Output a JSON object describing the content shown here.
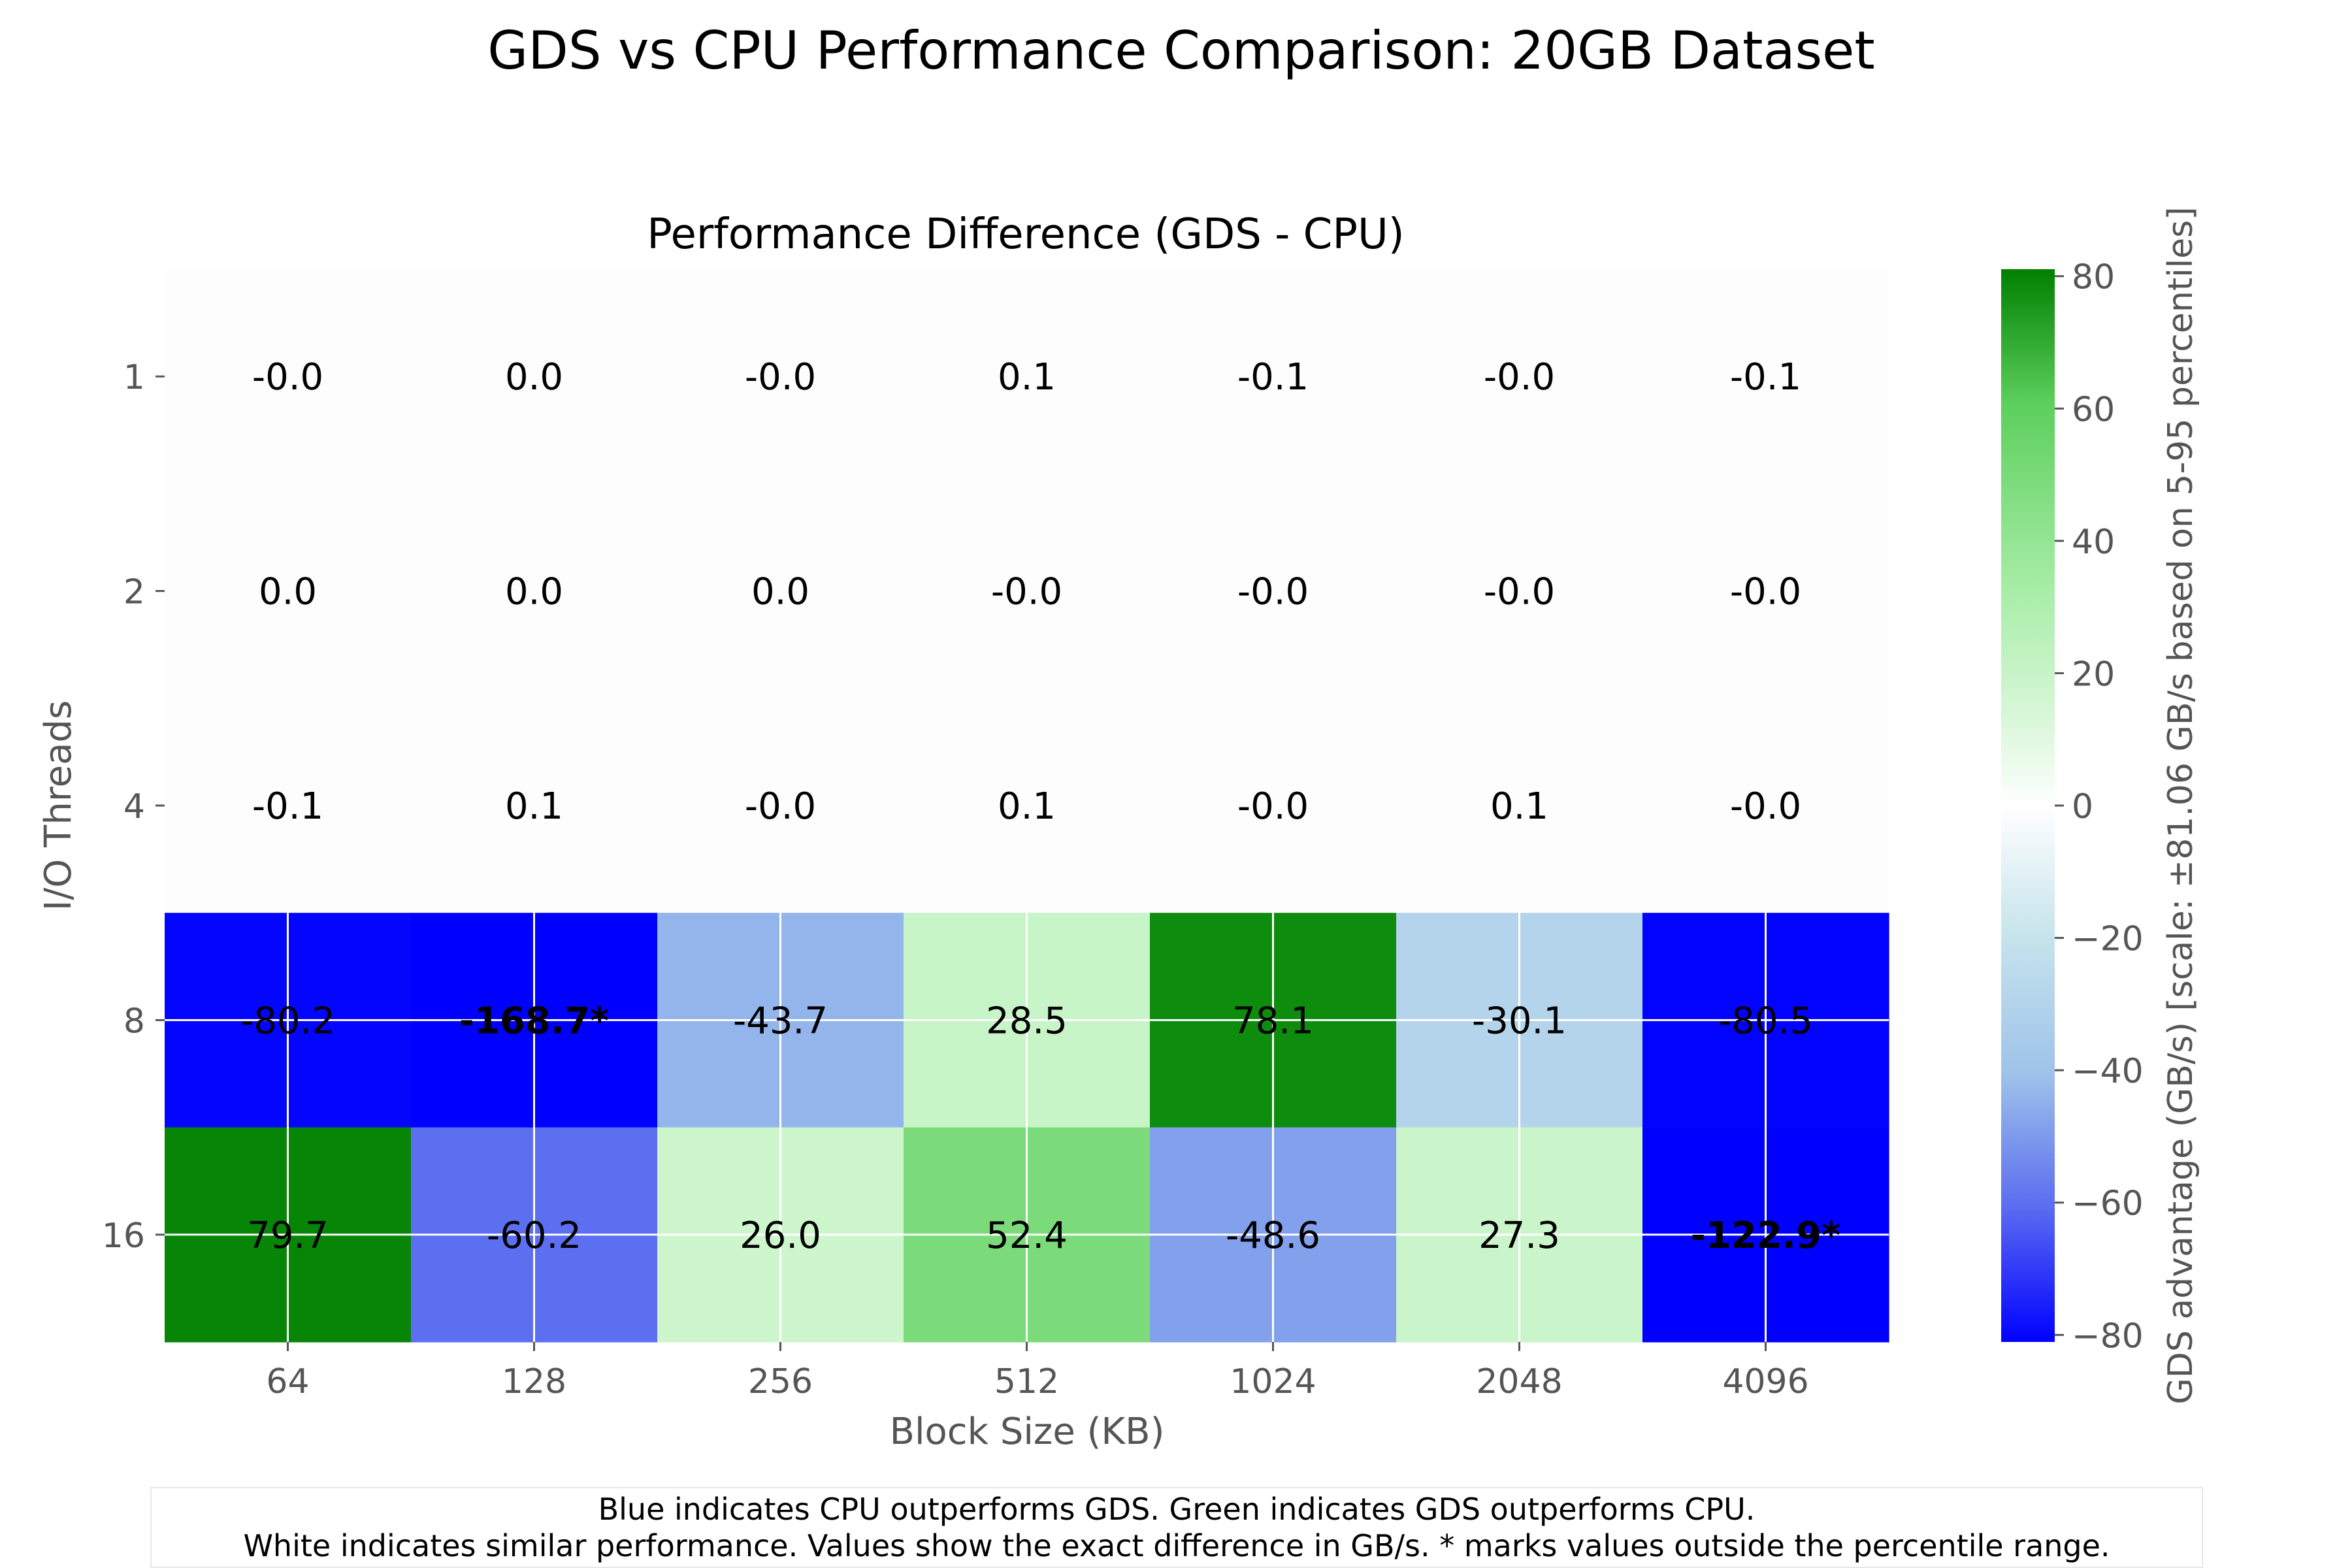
{
  "chart_data": {
    "type": "heatmap",
    "title": "GDS vs CPU Performance Comparison: 20GB Dataset",
    "subtitle": "Performance Difference (GDS - CPU)",
    "xlabel": "Block Size (KB)",
    "ylabel": "I/O Threads",
    "x_categories": [
      "64",
      "128",
      "256",
      "512",
      "1024",
      "2048",
      "4096"
    ],
    "y_categories": [
      "1",
      "2",
      "4",
      "8",
      "16"
    ],
    "values": [
      [
        -0.0,
        0.0,
        -0.0,
        0.1,
        -0.1,
        -0.0,
        -0.1
      ],
      [
        0.0,
        0.0,
        0.0,
        -0.0,
        -0.0,
        -0.0,
        -0.0
      ],
      [
        -0.1,
        0.1,
        -0.0,
        0.1,
        -0.0,
        0.1,
        -0.0
      ],
      [
        -80.2,
        -168.7,
        -43.7,
        28.5,
        78.1,
        -30.1,
        -80.5
      ],
      [
        79.7,
        -60.2,
        26.0,
        52.4,
        -48.6,
        27.3,
        -122.9
      ]
    ],
    "cell_labels": [
      [
        "-0.0",
        "0.0",
        "-0.0",
        "0.1",
        "-0.1",
        "-0.0",
        "-0.1"
      ],
      [
        "0.0",
        "0.0",
        "0.0",
        "-0.0",
        "-0.0",
        "-0.0",
        "-0.0"
      ],
      [
        "-0.1",
        "0.1",
        "-0.0",
        "0.1",
        "-0.0",
        "0.1",
        "-0.0"
      ],
      [
        "-80.2",
        "-168.7*",
        "-43.7",
        "28.5",
        "78.1",
        "-30.1",
        "-80.5"
      ],
      [
        "79.7",
        "-60.2",
        "26.0",
        "52.4",
        "-48.6",
        "27.3",
        "-122.9*"
      ]
    ],
    "outside_range": [
      [
        3,
        1
      ],
      [
        4,
        6
      ]
    ],
    "colorbar": {
      "label": "GDS advantage (GB/s) [scale: ±81.06 GB/s based on 5-95 percentiles]",
      "vmin": -81.06,
      "vmax": 81.06,
      "ticks": [
        80,
        60,
        40,
        20,
        0,
        -20,
        -40,
        -60,
        -80
      ],
      "tick_labels": [
        "80",
        "60",
        "40",
        "20",
        "0",
        "−20",
        "−40",
        "−60",
        "−80"
      ],
      "colors": [
        "#0000ff",
        "#5a6cf0",
        "#9ec3ea",
        "#c7e4ec",
        "#ffffff",
        "#c8f5c8",
        "#a8eda8",
        "#5ccf5c",
        "#008000"
      ]
    },
    "grid": true,
    "note": [
      "Blue indicates CPU outperforms GDS. Green indicates GDS outperforms CPU.",
      "White indicates similar performance. Values show the exact difference in GB/s. * marks values outside the percentile range."
    ]
  }
}
